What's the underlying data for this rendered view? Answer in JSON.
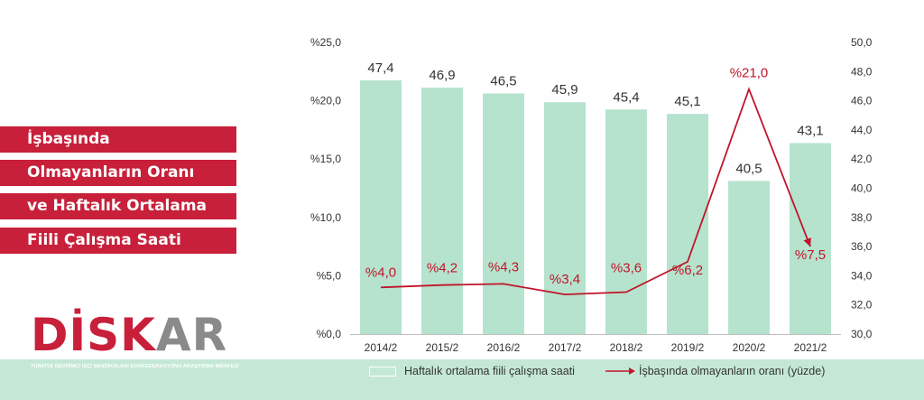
{
  "title_lines": [
    "İşbaşında",
    "Olmayanların Oranı",
    "ve Haftalık Ortalama",
    "Fiili Çalışma Saati"
  ],
  "logo": {
    "red_part": "DİSK",
    "grey_part": "AR",
    "tagline": "TÜRKİYE DEVRİMCİ İŞÇİ SENDİKALARI KONFEDERASYONU ARAŞTIRMA MERKEZİ"
  },
  "colors": {
    "bar": "#b6e3cd",
    "line": "#c0152b",
    "title_bg": "#c8203a",
    "band": "#c5e8d6"
  },
  "legend": {
    "bar_label": "Haftalık ortalama fiili çalışma saati",
    "line_label": "İşbaşında olmayanların oranı (yüzde)"
  },
  "chart_data": {
    "type": "bar",
    "categories": [
      "2014/2",
      "2015/2",
      "2016/2",
      "2017/2",
      "2018/2",
      "2019/2",
      "2020/2",
      "2021/2"
    ],
    "series": [
      {
        "name": "Haftalık ortalama fiili çalışma saati",
        "type": "bar",
        "axis": "right",
        "values": [
          47.4,
          46.9,
          46.5,
          45.9,
          45.4,
          45.1,
          40.5,
          43.1
        ],
        "labels": [
          "47,4",
          "46,9",
          "46,5",
          "45,9",
          "45,4",
          "45,1",
          "40,5",
          "43,1"
        ]
      },
      {
        "name": "İşbaşında olmayanların oranı (yüzde)",
        "type": "line",
        "axis": "left",
        "values": [
          4.0,
          4.2,
          4.3,
          3.4,
          3.6,
          6.2,
          21.0,
          7.5
        ],
        "labels": [
          "%4,0",
          "%4,2",
          "%4,3",
          "%3,4",
          "%3,6",
          "%6,2",
          "%21,0",
          "%7,5"
        ]
      }
    ],
    "left_axis": {
      "min": 0,
      "max": 25,
      "ticks": [
        "%0,0",
        "%5,0",
        "%10,0",
        "%15,0",
        "%20,0",
        "%25,0"
      ]
    },
    "right_axis": {
      "min": 30,
      "max": 50,
      "ticks": [
        "30,0",
        "32,0",
        "34,0",
        "36,0",
        "38,0",
        "40,0",
        "42,0",
        "44,0",
        "46,0",
        "48,0",
        "50,0"
      ]
    },
    "grid": false,
    "legend_position": "bottom"
  }
}
